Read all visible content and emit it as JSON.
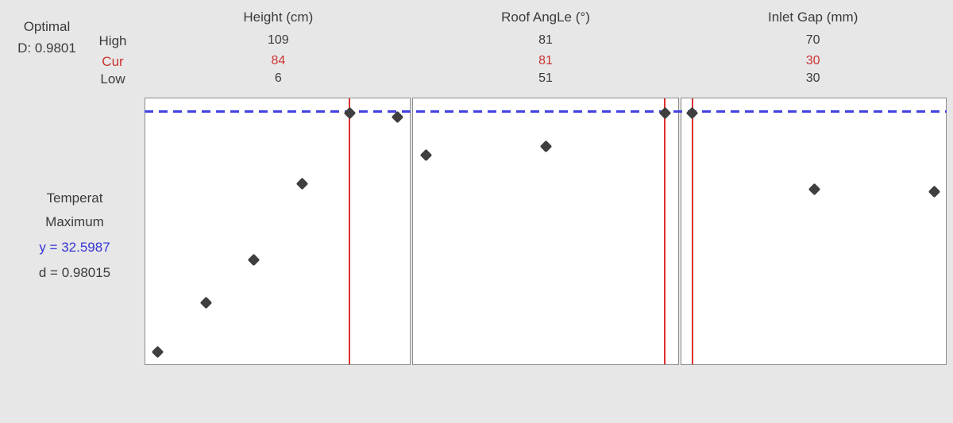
{
  "optimal": {
    "label": "Optimal",
    "d_label": "D: 0.9801"
  },
  "row_labels": {
    "high": "High",
    "cur": "Cur",
    "low": "Low"
  },
  "response": {
    "name_line1": "Temperat",
    "name_line2": "Maximum",
    "y_label": "y = 32.5987",
    "d_label": "d = 0.98015"
  },
  "colors": {
    "background": "#e7e7e7",
    "panel_border": "#8c8c8c",
    "current_line_red": "#dd3030",
    "cur_text_red": "#cc3333",
    "optimal_line_blue": "#4242e0",
    "y_text_blue": "#3535d6",
    "point_fill": "#3f3f3f"
  },
  "chart_data": {
    "type": "scatter",
    "title": "Response optimization plot",
    "response": {
      "name": "Temperat Maximum",
      "y_optimal": 32.5987,
      "d_individual": 0.98015,
      "D_composite": 0.9801
    },
    "legend_position": "none",
    "grid": false,
    "dashed_line_y_frac": 0.051,
    "panels": [
      {
        "factor": "Height (cm)",
        "high": "109",
        "cur": "84",
        "low": "6",
        "red_line_x_frac": 0.772,
        "points": [
          [
            0.047,
            0.955
          ],
          [
            0.231,
            0.768
          ],
          [
            0.409,
            0.607
          ],
          [
            0.593,
            0.321
          ],
          [
            0.772,
            0.054
          ],
          [
            0.952,
            0.071
          ]
        ]
      },
      {
        "factor": "Roof AngLe (°)",
        "high": "81",
        "cur": "81",
        "low": "51",
        "red_line_x_frac": 0.952,
        "points": [
          [
            0.048,
            0.214
          ],
          [
            0.503,
            0.182
          ],
          [
            0.952,
            0.054
          ]
        ]
      },
      {
        "factor": "Inlet Gap (mm)",
        "high": "70",
        "cur": "30",
        "low": "30",
        "red_line_x_frac": 0.042,
        "points": [
          [
            0.042,
            0.054
          ],
          [
            0.503,
            0.342
          ],
          [
            0.958,
            0.351
          ]
        ]
      }
    ]
  }
}
